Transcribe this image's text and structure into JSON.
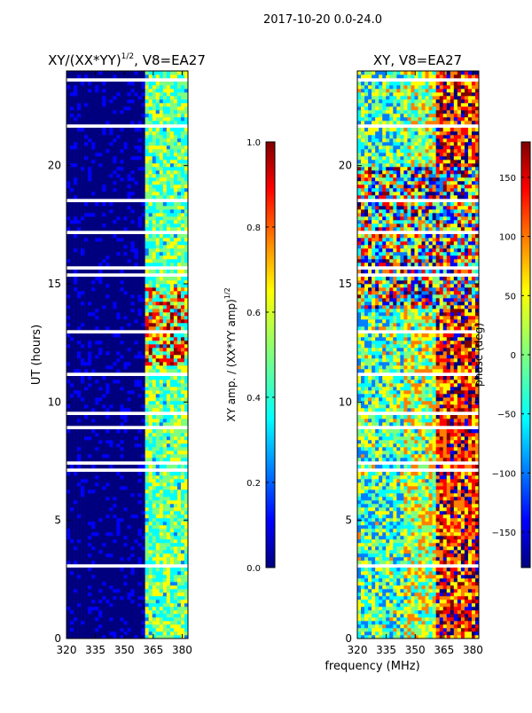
{
  "chart_data": [
    {
      "type": "heatmap",
      "title": "XY/(XX*YY)^1/2, V8=EA27",
      "title_main": "XY/(XX*YY)",
      "title_exp": "1/2",
      "title_rest": ", V8=EA27",
      "xlabel": "",
      "ylabel": "UT (hours)",
      "xlim": [
        320,
        383
      ],
      "ylim": [
        0,
        24
      ],
      "xticks": [
        "320",
        "335",
        "350",
        "365",
        "380"
      ],
      "yticks": [
        "0",
        "5",
        "10",
        "15",
        "20"
      ],
      "colorbar": {
        "label": "XY amp. / (XX*YY amp)^1/2",
        "label_main": "XY amp. / (XX*YY amp)",
        "label_exp": "1/2",
        "range": [
          0.0,
          1.0
        ],
        "ticks": [
          "0.0",
          "0.2",
          "0.4",
          "0.6",
          "0.8",
          "1.0"
        ],
        "colormap": "jet"
      }
    },
    {
      "type": "heatmap",
      "title": "XY, V8=EA27",
      "xlabel": "frequency (MHz)",
      "ylabel": "",
      "xlim": [
        320,
        383
      ],
      "ylim": [
        0,
        24
      ],
      "xticks": [
        "320",
        "335",
        "350",
        "365",
        "380"
      ],
      "yticks": [
        "0",
        "5",
        "10",
        "15",
        "20"
      ],
      "colorbar": {
        "label": "phase (deg)",
        "range": [
          -180,
          180
        ],
        "ticks": [
          "−150",
          "−100",
          "−50",
          "0",
          "50",
          "100",
          "150"
        ],
        "colormap": "jet"
      }
    }
  ],
  "suptitle": "2017-10-20 0.0-24.0",
  "colors": {
    "jet": [
      "#00007f",
      "#0000ff",
      "#007fff",
      "#00ffff",
      "#7fff7f",
      "#ffff00",
      "#ff7f00",
      "#ff0000",
      "#7f0000"
    ],
    "background": "#ffffff"
  }
}
